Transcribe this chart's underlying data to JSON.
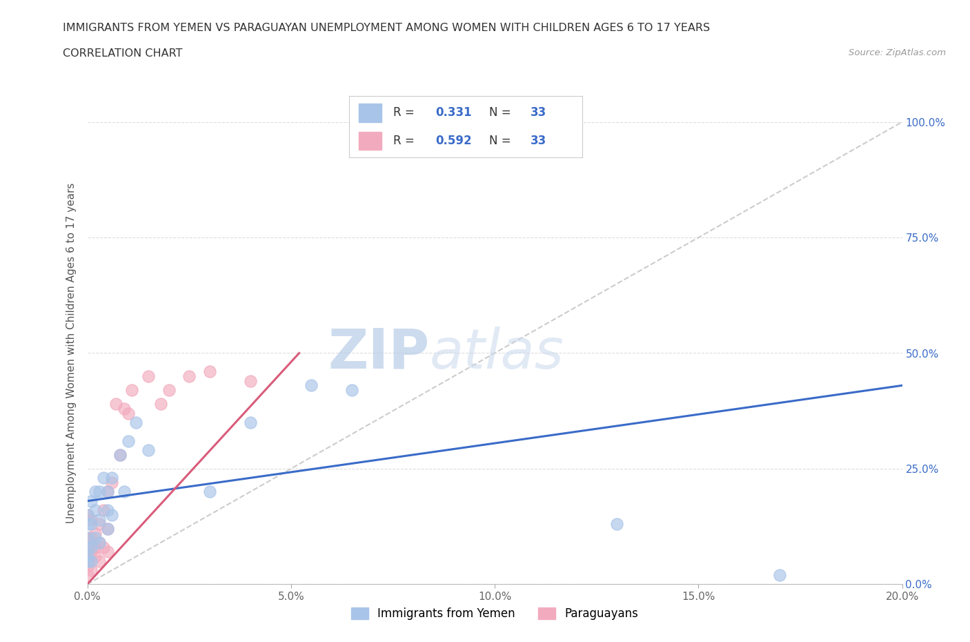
{
  "title": "IMMIGRANTS FROM YEMEN VS PARAGUAYAN UNEMPLOYMENT AMONG WOMEN WITH CHILDREN AGES 6 TO 17 YEARS",
  "subtitle": "CORRELATION CHART",
  "source": "Source: ZipAtlas.com",
  "ylabel": "Unemployment Among Women with Children Ages 6 to 17 years",
  "xlim": [
    0.0,
    0.2
  ],
  "ylim": [
    0.0,
    1.0
  ],
  "x_ticks": [
    0.0,
    0.05,
    0.1,
    0.15,
    0.2
  ],
  "x_tick_labels": [
    "0.0%",
    "5.0%",
    "10.0%",
    "15.0%",
    "20.0%"
  ],
  "y_ticks": [
    0.0,
    0.25,
    0.5,
    0.75,
    1.0
  ],
  "y_tick_labels": [
    "0.0%",
    "25.0%",
    "50.0%",
    "75.0%",
    "100.0%"
  ],
  "legend_labels": [
    "Immigrants from Yemen",
    "Paraguayans"
  ],
  "R_blue": 0.331,
  "N_blue": 33,
  "R_pink": 0.592,
  "N_pink": 33,
  "blue_color": "#A8C4E8",
  "pink_color": "#F2ABBE",
  "blue_line_color": "#3A6BC8",
  "pink_line_color": "#D95C7A",
  "diagonal_color": "#CCCCCC",
  "watermark_zip": "ZIP",
  "watermark_atlas": "atlas",
  "blue_scatter_x": [
    0.0,
    0.0,
    0.0,
    0.0,
    0.0,
    0.0,
    0.001,
    0.001,
    0.001,
    0.001,
    0.002,
    0.002,
    0.002,
    0.003,
    0.003,
    0.003,
    0.004,
    0.005,
    0.005,
    0.005,
    0.006,
    0.006,
    0.008,
    0.009,
    0.01,
    0.012,
    0.015,
    0.03,
    0.04,
    0.055,
    0.065,
    0.13,
    0.17
  ],
  "blue_scatter_y": [
    0.05,
    0.06,
    0.08,
    0.1,
    0.13,
    0.15,
    0.05,
    0.08,
    0.13,
    0.18,
    0.1,
    0.16,
    0.2,
    0.09,
    0.14,
    0.2,
    0.23,
    0.12,
    0.16,
    0.2,
    0.15,
    0.23,
    0.28,
    0.2,
    0.31,
    0.35,
    0.29,
    0.2,
    0.35,
    0.43,
    0.42,
    0.13,
    0.02
  ],
  "pink_scatter_x": [
    0.0,
    0.0,
    0.0,
    0.0,
    0.0,
    0.0,
    0.001,
    0.001,
    0.001,
    0.001,
    0.002,
    0.002,
    0.002,
    0.003,
    0.003,
    0.003,
    0.004,
    0.004,
    0.005,
    0.005,
    0.005,
    0.006,
    0.007,
    0.008,
    0.009,
    0.01,
    0.011,
    0.015,
    0.018,
    0.02,
    0.025,
    0.03,
    0.04
  ],
  "pink_scatter_y": [
    0.02,
    0.04,
    0.06,
    0.08,
    0.1,
    0.15,
    0.03,
    0.07,
    0.1,
    0.14,
    0.06,
    0.08,
    0.11,
    0.05,
    0.09,
    0.13,
    0.08,
    0.16,
    0.07,
    0.12,
    0.2,
    0.22,
    0.39,
    0.28,
    0.38,
    0.37,
    0.42,
    0.45,
    0.39,
    0.42,
    0.45,
    0.46,
    0.44
  ],
  "background_color": "#FFFFFF",
  "grid_color": "#DDDDDD",
  "blue_trend_x": [
    0.0,
    0.2
  ],
  "blue_trend_y": [
    0.18,
    0.43
  ],
  "pink_trend_x": [
    0.0,
    0.052
  ],
  "pink_trend_y": [
    0.0,
    0.5
  ]
}
